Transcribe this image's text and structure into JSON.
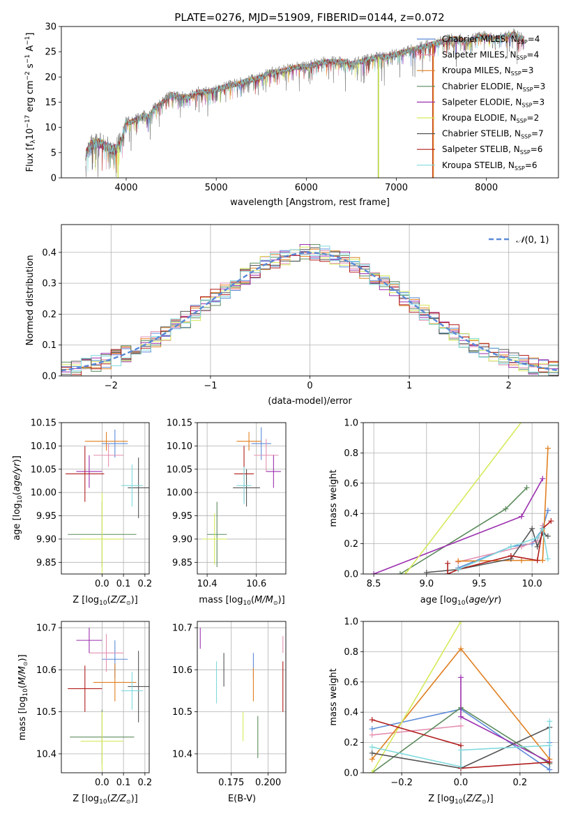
{
  "title": "PLATE=0276, MJD=51909, FIBERID=0144, z=0.072",
  "series": [
    {
      "label": "Chabrier MILES, N",
      "n": "=4",
      "color": "#5b8ad8"
    },
    {
      "label": "Salpeter MILES, N",
      "n": "=4",
      "color": "#e48fb0"
    },
    {
      "label": "Kroupa MILES, N",
      "n": "=3",
      "color": "#e07f1f"
    },
    {
      "label": "Chabrier ELODIE, N",
      "n": "=3",
      "color": "#5c8a5c"
    },
    {
      "label": "Salpeter ELODIE, N",
      "n": "=3",
      "color": "#9b2fae"
    },
    {
      "label": "Kroupa ELODIE, N",
      "n": "=2",
      "color": "#d6ea5a"
    },
    {
      "label": "Chabrier STELIB, N",
      "n": "=7",
      "color": "#555555"
    },
    {
      "label": "Salpeter STELIB, N",
      "n": "=6",
      "color": "#b01c1c"
    },
    {
      "label": "Kroupa STELIB, N",
      "n": "=6",
      "color": "#7fd9dd"
    }
  ],
  "legend_sub": "SSP",
  "chart_data": [
    {
      "id": "spectrum",
      "type": "line",
      "xlabel": "wavelength [Angstrom, rest frame]",
      "ylabel": "Flux [f",
      "xlim": [
        3280,
        8800
      ],
      "ylim": [
        0,
        30
      ],
      "xticks": [
        4000,
        5000,
        6000,
        7000,
        8000
      ],
      "yticks": [
        0,
        5,
        10,
        15,
        20,
        25,
        30
      ],
      "curve": [
        [
          3550,
          4.5
        ],
        [
          3600,
          6.5
        ],
        [
          3700,
          7
        ],
        [
          3800,
          6
        ],
        [
          3850,
          5.5
        ],
        [
          3900,
          6
        ],
        [
          3950,
          7.5
        ],
        [
          4000,
          11
        ],
        [
          4050,
          11
        ],
        [
          4100,
          11.5
        ],
        [
          4150,
          11.8
        ],
        [
          4200,
          12.5
        ],
        [
          4250,
          12
        ],
        [
          4300,
          13.5
        ],
        [
          4400,
          15
        ],
        [
          4500,
          16.5
        ],
        [
          4600,
          16
        ],
        [
          4700,
          16
        ],
        [
          4800,
          17
        ],
        [
          4900,
          17
        ],
        [
          5000,
          17.5
        ],
        [
          5100,
          18
        ],
        [
          5200,
          18.5
        ],
        [
          5300,
          19
        ],
        [
          5400,
          19.5
        ],
        [
          5500,
          20
        ],
        [
          5600,
          21
        ],
        [
          5700,
          21
        ],
        [
          5800,
          21.5
        ],
        [
          5900,
          22
        ],
        [
          6000,
          22
        ],
        [
          6100,
          22.5
        ],
        [
          6200,
          23
        ],
        [
          6300,
          23
        ],
        [
          6400,
          23
        ],
        [
          6500,
          22.5
        ],
        [
          6600,
          23
        ],
        [
          6700,
          23.5
        ],
        [
          6800,
          24
        ],
        [
          6900,
          24
        ],
        [
          7000,
          24.5
        ],
        [
          7100,
          25
        ],
        [
          7200,
          25.5
        ],
        [
          7300,
          26
        ],
        [
          7400,
          26.5
        ],
        [
          7500,
          27
        ],
        [
          7600,
          27.5
        ],
        [
          7700,
          27.5
        ],
        [
          7800,
          27
        ],
        [
          7900,
          28
        ],
        [
          8000,
          28
        ],
        [
          8100,
          27.5
        ],
        [
          8200,
          28
        ],
        [
          8300,
          28.5
        ],
        [
          8400,
          27.5
        ]
      ],
      "spikes": [
        {
          "x": 3910,
          "series": 5
        },
        {
          "x": 6800,
          "series": 3
        },
        {
          "x": 6803,
          "series": 5
        },
        {
          "x": 7405,
          "series": 7
        },
        {
          "x": 7410,
          "series": 2
        }
      ]
    },
    {
      "id": "hist",
      "type": "histogram",
      "xlabel": "(data-model)/error",
      "ylabel": "Normed distribution",
      "xlim": [
        -2.5,
        2.5
      ],
      "ylim": [
        0,
        0.49
      ],
      "xticks": [
        -2,
        -1,
        0,
        1,
        2
      ],
      "yticks": [
        0.0,
        0.1,
        0.2,
        0.3,
        0.4
      ],
      "bin_width": 0.1,
      "gaussian_label": "(0, 1)"
    },
    {
      "id": "zage",
      "type": "errorbar",
      "xlabel": "Z [log",
      "ylabel": "age  [log",
      "xlim": [
        -0.19,
        0.22
      ],
      "ylim": [
        9.825,
        10.15
      ],
      "xticks": [
        -0.0,
        0.1,
        0.2
      ],
      "xtick_labels": [
        "0.0",
        "0.1",
        "0.2"
      ],
      "yticks": [
        9.85,
        9.9,
        9.95,
        10.0,
        10.05,
        10.1,
        10.15
      ],
      "points": [
        {
          "s": 0,
          "x": 0.06,
          "y": 10.105,
          "xerr": 0.06,
          "yerr": 0.03
        },
        {
          "s": 1,
          "x": 0.03,
          "y": 10.08,
          "xerr": 0.07,
          "yerr": 0.025
        },
        {
          "s": 2,
          "x": 0.02,
          "y": 10.11,
          "xerr": 0.1,
          "yerr": 0.02
        },
        {
          "s": 3,
          "x": 0.0,
          "y": 9.91,
          "xerr": 0.16,
          "yerr": 0.07
        },
        {
          "s": 4,
          "x": -0.06,
          "y": 10.045,
          "xerr": 0.06,
          "yerr": 0.035
        },
        {
          "s": 5,
          "x": 0.0,
          "y": 9.9,
          "xerr": 0.1,
          "yerr": 0.1
        },
        {
          "s": 6,
          "x": 0.17,
          "y": 10.01,
          "xerr": 0.05,
          "yerr": 0.065
        },
        {
          "s": 7,
          "x": -0.08,
          "y": 10.04,
          "xerr": 0.09,
          "yerr": 0.06
        },
        {
          "s": 8,
          "x": 0.14,
          "y": 10.015,
          "xerr": 0.05,
          "yerr": 0.045
        }
      ]
    },
    {
      "id": "massage",
      "type": "errorbar",
      "xlabel": "mass [log",
      "ylabel": "",
      "xlim": [
        10.36,
        10.72
      ],
      "ylim": [
        9.825,
        10.15
      ],
      "xticks": [
        10.4,
        10.6
      ],
      "xtick_labels": [
        "10.4",
        "10.6"
      ],
      "yticks": [
        9.85,
        9.9,
        9.95,
        10.0,
        10.05,
        10.1,
        10.15
      ],
      "points": [
        {
          "s": 0,
          "x": 10.62,
          "y": 10.105,
          "xerr": 0.04,
          "yerr": 0.035
        },
        {
          "s": 1,
          "x": 10.64,
          "y": 10.08,
          "xerr": 0.05,
          "yerr": 0.035
        },
        {
          "s": 2,
          "x": 10.57,
          "y": 10.11,
          "xerr": 0.05,
          "yerr": 0.02
        },
        {
          "s": 3,
          "x": 10.44,
          "y": 9.91,
          "xerr": 0.04,
          "yerr": 0.07
        },
        {
          "s": 4,
          "x": 10.67,
          "y": 10.045,
          "xerr": 0.03,
          "yerr": 0.035
        },
        {
          "s": 5,
          "x": 10.43,
          "y": 9.9,
          "xerr": 0.05,
          "yerr": 0.055
        },
        {
          "s": 6,
          "x": 10.56,
          "y": 10.01,
          "xerr": 0.055,
          "yerr": 0.04
        },
        {
          "s": 7,
          "x": 10.55,
          "y": 10.04,
          "xerr": 0.04,
          "yerr": 0.06
        },
        {
          "s": 8,
          "x": 10.55,
          "y": 10.015,
          "xerr": 0.03,
          "yerr": 0.04
        }
      ]
    },
    {
      "id": "agew",
      "type": "line",
      "xlabel": "age  [log",
      "ylabel": "mass weight",
      "xlim": [
        8.4,
        10.25
      ],
      "ylim": [
        0,
        1
      ],
      "xticks": [
        8.5,
        9.0,
        9.5,
        10.0
      ],
      "xtick_labels": [
        "8.5",
        "9.0",
        "9.5",
        "10.0"
      ],
      "yticks": [
        0,
        0.2,
        0.4,
        0.6,
        0.8,
        1.0
      ],
      "ytick_labels": [
        "0.0",
        "0.2",
        "0.4",
        "0.6",
        "0.8",
        "1.0"
      ],
      "lines": [
        {
          "s": 0,
          "pts": [
            [
              9.3,
              0.04
            ],
            [
              9.8,
              0.18
            ],
            [
              10.0,
              0.2
            ],
            [
              10.1,
              0.3
            ],
            [
              10.15,
              0.42
            ]
          ]
        },
        {
          "s": 1,
          "pts": [
            [
              9.3,
              0.08
            ],
            [
              9.9,
              0.18
            ],
            [
              10.05,
              0.22
            ],
            [
              10.1,
              0.32
            ]
          ]
        },
        {
          "s": 2,
          "pts": [
            [
              9.3,
              0.085
            ],
            [
              9.9,
              0.09
            ],
            [
              10.1,
              0.09
            ],
            [
              10.15,
              0.83
            ]
          ]
        },
        {
          "s": 3,
          "pts": [
            [
              8.75,
              0.0
            ],
            [
              9.75,
              0.43
            ],
            [
              9.95,
              0.57
            ]
          ]
        },
        {
          "s": 4,
          "pts": [
            [
              8.5,
              0.0
            ],
            [
              9.9,
              0.38
            ],
            [
              10.1,
              0.63
            ]
          ]
        },
        {
          "s": 5,
          "pts": [
            [
              8.8,
              0.0
            ],
            [
              9.95,
              1.05
            ]
          ]
        },
        {
          "s": 6,
          "pts": [
            [
              9.0,
              0.01
            ],
            [
              9.3,
              0.03
            ],
            [
              9.8,
              0.1
            ],
            [
              10.0,
              0.3
            ],
            [
              10.05,
              0.18
            ],
            [
              10.1,
              0.27
            ],
            [
              10.15,
              0.25
            ]
          ]
        },
        {
          "s": 7,
          "pts": [
            [
              9.2,
              0.07
            ],
            [
              9.2,
              0.0
            ],
            [
              9.3,
              0.03
            ],
            [
              9.8,
              0.12
            ],
            [
              10.05,
              0.09
            ],
            [
              10.1,
              0.3
            ],
            [
              10.18,
              0.35
            ]
          ]
        },
        {
          "s": 8,
          "pts": [
            [
              9.3,
              0.03
            ],
            [
              9.8,
              0.18
            ],
            [
              10.05,
              0.24
            ],
            [
              10.1,
              0.3
            ],
            [
              10.15,
              0.1
            ]
          ]
        }
      ]
    },
    {
      "id": "zmass",
      "type": "errorbar",
      "xlabel": "Z [log",
      "ylabel": "mass [log",
      "xlim": [
        -0.19,
        0.22
      ],
      "ylim": [
        10.355,
        10.715
      ],
      "xticks": [
        0.0,
        0.1,
        0.2
      ],
      "xtick_labels": [
        "0.0",
        "0.1",
        "0.2"
      ],
      "yticks": [
        10.4,
        10.5,
        10.6,
        10.7
      ],
      "ytick_labels": [
        "10.4",
        "10.5",
        "10.6",
        "10.7"
      ],
      "points": [
        {
          "s": 0,
          "x": 0.06,
          "y": 10.625,
          "xerr": 0.06,
          "yerr": 0.045
        },
        {
          "s": 1,
          "x": 0.02,
          "y": 10.64,
          "xerr": 0.08,
          "yerr": 0.045
        },
        {
          "s": 2,
          "x": 0.06,
          "y": 10.57,
          "xerr": 0.1,
          "yerr": 0.045
        },
        {
          "s": 3,
          "x": 0.0,
          "y": 10.44,
          "xerr": 0.15,
          "yerr": 0.065
        },
        {
          "s": 4,
          "x": -0.06,
          "y": 10.67,
          "xerr": 0.06,
          "yerr": 0.03
        },
        {
          "s": 5,
          "x": 0.0,
          "y": 10.43,
          "xerr": 0.1,
          "yerr": 0.07
        },
        {
          "s": 6,
          "x": 0.17,
          "y": 10.56,
          "xerr": 0.05,
          "yerr": 0.085
        },
        {
          "s": 7,
          "x": -0.08,
          "y": 10.555,
          "xerr": 0.08,
          "yerr": 0.055
        },
        {
          "s": 8,
          "x": 0.14,
          "y": 10.55,
          "xerr": 0.05,
          "yerr": 0.045
        }
      ]
    },
    {
      "id": "ebv",
      "type": "errorbar",
      "xlabel": "E(B-V)",
      "ylabel": "",
      "xlim": [
        0.152,
        0.212
      ],
      "ylim": [
        10.355,
        10.715
      ],
      "xticks": [
        0.175,
        0.2
      ],
      "xtick_labels": [
        "0.175",
        "0.200"
      ],
      "yticks": [
        10.4,
        10.5,
        10.6,
        10.7
      ],
      "ytick_labels": [
        "10.4",
        "10.5",
        "10.6",
        "10.7"
      ],
      "points": [
        {
          "s": 0,
          "x": 0.19,
          "y": 10.61,
          "xerr": 0,
          "yerr": 0.03
        },
        {
          "s": 1,
          "x": 0.21,
          "y": 10.66,
          "xerr": 0,
          "yerr": 0.02
        },
        {
          "s": 2,
          "x": 0.19,
          "y": 10.565,
          "xerr": 0,
          "yerr": 0.04
        },
        {
          "s": 3,
          "x": 0.193,
          "y": 10.44,
          "xerr": 0,
          "yerr": 0.05
        },
        {
          "s": 4,
          "x": 0.154,
          "y": 10.675,
          "xerr": 0,
          "yerr": 0.025
        },
        {
          "s": 5,
          "x": 0.183,
          "y": 10.465,
          "xerr": 0,
          "yerr": 0.035
        },
        {
          "s": 6,
          "x": 0.17,
          "y": 10.6,
          "xerr": 0,
          "yerr": 0.04
        },
        {
          "s": 7,
          "x": 0.21,
          "y": 10.56,
          "xerr": 0,
          "yerr": 0.06
        },
        {
          "s": 8,
          "x": 0.165,
          "y": 10.57,
          "xerr": 0,
          "yerr": 0.05
        }
      ]
    },
    {
      "id": "zw",
      "type": "line",
      "xlabel": "Z [log",
      "ylabel": "mass weight",
      "xlim": [
        -0.33,
        0.33
      ],
      "ylim": [
        0,
        1
      ],
      "xticks": [
        -0.2,
        0.0,
        0.2
      ],
      "xtick_labels": [
        "−0.2",
        "0.0",
        "0.2"
      ],
      "yticks": [
        0,
        0.2,
        0.4,
        0.6,
        0.8,
        1.0
      ],
      "ytick_labels": [
        "0.0",
        "0.2",
        "0.4",
        "0.6",
        "0.8",
        "1.0"
      ],
      "lines": [
        {
          "s": 0,
          "pts": [
            [
              -0.3,
              0.29
            ],
            [
              0.0,
              0.42
            ],
            [
              0.3,
              0.02
            ],
            [
              0.3,
              0.2
            ]
          ]
        },
        {
          "s": 1,
          "pts": [
            [
              -0.3,
              0.25
            ],
            [
              0.0,
              0.31
            ]
          ]
        },
        {
          "s": 2,
          "pts": [
            [
              -0.3,
              0.09
            ],
            [
              0.0,
              0.82
            ],
            [
              0.3,
              0.09
            ]
          ]
        },
        {
          "s": 3,
          "pts": [
            [
              -0.3,
              0.0
            ],
            [
              0.0,
              0.43
            ],
            [
              0.3,
              0.06
            ]
          ]
        },
        {
          "s": 4,
          "pts": [
            [
              0.0,
              0.63
            ],
            [
              0.0,
              0.37
            ],
            [
              0.3,
              0.07
            ]
          ]
        },
        {
          "s": 5,
          "pts": [
            [
              -0.3,
              0.0
            ],
            [
              0.0,
              1.0
            ]
          ]
        },
        {
          "s": 6,
          "pts": [
            [
              -0.3,
              0.13
            ],
            [
              0.0,
              0.03
            ],
            [
              0.3,
              0.3
            ]
          ]
        },
        {
          "s": 7,
          "pts": [
            [
              -0.3,
              0.35
            ],
            [
              0.0,
              0.18
            ],
            [
              0.0,
              0.03
            ],
            [
              0.3,
              0.07
            ]
          ]
        },
        {
          "s": 8,
          "pts": [
            [
              -0.3,
              0.17
            ],
            [
              0.0,
              0.04
            ],
            [
              0.0,
              0.15
            ],
            [
              0.3,
              0.18
            ],
            [
              0.3,
              0.34
            ]
          ]
        }
      ]
    }
  ]
}
